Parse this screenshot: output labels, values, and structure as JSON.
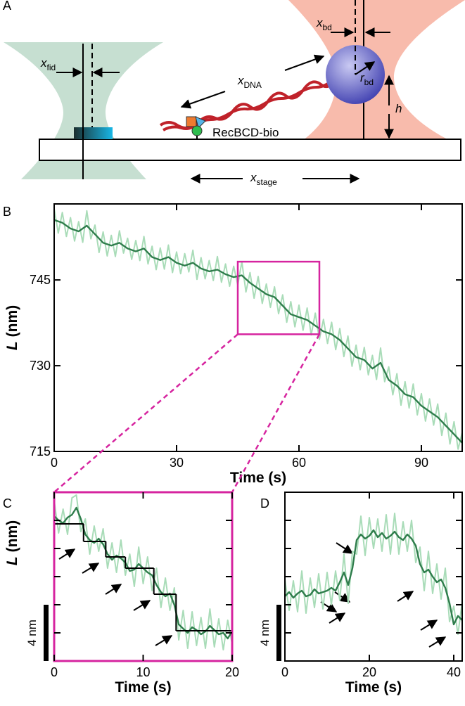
{
  "panel_a": {
    "label": "A",
    "x_fid": {
      "symbol": "x",
      "subscript": "fid"
    },
    "x_dna": {
      "symbol": "x",
      "subscript": "DNA"
    },
    "x_bd": {
      "symbol": "x",
      "subscript": "bd"
    },
    "r_bd": {
      "symbol": "r",
      "subscript": "bd"
    },
    "h": "h",
    "enzyme": "RecBCD-bio",
    "x_stage": {
      "symbol": "x",
      "subscript": "stage"
    }
  },
  "chart_data": [
    {
      "type": "line",
      "panel": "B",
      "x_label": "Time (s)",
      "y_label": {
        "symbol": "L",
        "unit": "(nm)"
      },
      "xlim": [
        0,
        100
      ],
      "ylim": [
        715,
        758.3
      ],
      "xticks": [
        0,
        30,
        60,
        90
      ],
      "yticks": [
        715,
        730,
        745
      ],
      "ytick_labels": true,
      "zoom_box": {
        "xlim": [
          45,
          65
        ],
        "ylim": [
          735.5,
          748.2
        ],
        "color": "#d6249f"
      },
      "series": [
        {
          "color": "#a9dcb8",
          "x": [
            0,
            1,
            2,
            3,
            4,
            5,
            6,
            7,
            8,
            9,
            10,
            11,
            12,
            13,
            14,
            15,
            16,
            17,
            18,
            19,
            20,
            21,
            22,
            23,
            24,
            25,
            26,
            27,
            28,
            29,
            30,
            31,
            32,
            33,
            34,
            35,
            36,
            37,
            38,
            39,
            40,
            41,
            42,
            43,
            44,
            45,
            46,
            47,
            48,
            49,
            50,
            51,
            52,
            53,
            54,
            55,
            56,
            57,
            58,
            59,
            60,
            61,
            62,
            63,
            64,
            65,
            66,
            67,
            68,
            69,
            70,
            71,
            72,
            73,
            74,
            75,
            76,
            77,
            78,
            79,
            80,
            81,
            82,
            83,
            84,
            85,
            86,
            87,
            88,
            89,
            90,
            91,
            92,
            93,
            94,
            95,
            96,
            97,
            98,
            99,
            100
          ],
          "values": [
            757.5,
            753.2,
            756.8,
            752.6,
            755.9,
            751.8,
            755.2,
            751.6,
            757.1,
            752.2,
            754.6,
            749.8,
            753.4,
            749.2,
            752.8,
            749.1,
            753.6,
            749.7,
            752.3,
            748.6,
            751.9,
            748.4,
            752.6,
            747.8,
            750.9,
            746.8,
            750.6,
            746.9,
            751.1,
            746.3,
            749.9,
            746.1,
            749.6,
            746.4,
            750.2,
            745.1,
            748.9,
            745.2,
            748.4,
            744.9,
            749.1,
            744.6,
            747.8,
            743.9,
            747.4,
            744.1,
            748.2,
            742.9,
            746.3,
            741.8,
            745.6,
            740.9,
            744.3,
            740.2,
            743.8,
            739.1,
            742.4,
            737.6,
            741.2,
            736.8,
            740.6,
            736.2,
            740.1,
            735.4,
            739.2,
            734.6,
            738.1,
            733.9,
            737.6,
            732.8,
            736.5,
            731.6,
            735.2,
            729.9,
            733.6,
            729.3,
            733.2,
            728.4,
            731.8,
            727.6,
            733.1,
            727.2,
            729.8,
            724.9,
            728.6,
            723.1,
            727.2,
            722.6,
            726.8,
            721.4,
            725.1,
            720.3,
            724.2,
            719.6,
            723.3,
            717.8,
            721.7,
            716.3,
            720.2,
            715.4,
            718.3
          ]
        },
        {
          "color": "#2f7d4c",
          "x": [
            0,
            2,
            4,
            6,
            8,
            10,
            12,
            14,
            16,
            18,
            20,
            22,
            24,
            26,
            28,
            30,
            32,
            34,
            36,
            38,
            40,
            42,
            44,
            46,
            48,
            50,
            52,
            54,
            56,
            58,
            60,
            62,
            64,
            66,
            68,
            70,
            72,
            74,
            76,
            78,
            80,
            82,
            84,
            86,
            88,
            90,
            92,
            94,
            96,
            98,
            100
          ],
          "values": [
            755.5,
            755,
            754,
            753.5,
            754.5,
            753,
            751.5,
            751,
            751.5,
            750.5,
            750,
            750.5,
            749,
            748.5,
            749,
            748,
            747.5,
            748,
            747,
            746.5,
            746.8,
            746,
            745.5,
            745.8,
            744.5,
            743.5,
            742.5,
            742,
            740.5,
            739,
            738.5,
            738,
            737,
            736,
            735.5,
            734.5,
            733,
            731.5,
            731,
            729.5,
            730.5,
            727.5,
            726.5,
            725,
            724.5,
            723,
            722,
            721,
            719.5,
            718,
            716.5
          ]
        }
      ]
    },
    {
      "type": "line",
      "panel": "C",
      "x_label": "Time (s)",
      "y_label": {
        "symbol": "L",
        "unit": "(nm)"
      },
      "xlim": [
        0,
        20
      ],
      "ylim": [
        0,
        12
      ],
      "xticks": [
        0,
        10,
        20
      ],
      "yticks": [
        2,
        4,
        6,
        8,
        10
      ],
      "ytick_labels": false,
      "frame_color": "#d6249f",
      "scale_bar": {
        "value": 4,
        "label": "4 nm"
      },
      "step_fit": {
        "color": "#000000",
        "edges": [
          0,
          3.3,
          5.8,
          8,
          11.2,
          13.7,
          20
        ],
        "values": [
          9.75,
          8.5,
          7.4,
          6.6,
          4.75,
          2.15
        ]
      },
      "series": [
        {
          "color": "#a9dcb8",
          "x": [
            0,
            0.5,
            1,
            1.5,
            2,
            2.5,
            3,
            3.5,
            4,
            4.5,
            5,
            5.5,
            6,
            6.5,
            7,
            7.5,
            8,
            8.5,
            9,
            9.5,
            10,
            10.5,
            11,
            11.5,
            12,
            12.5,
            13,
            13.5,
            14,
            14.5,
            15,
            15.5,
            16,
            16.5,
            17,
            17.5,
            18,
            18.5,
            19,
            19.5,
            20
          ],
          "values": [
            11.4,
            9.1,
            10.8,
            9.0,
            11.6,
            11.8,
            9.2,
            10.1,
            7.6,
            9.6,
            7.8,
            9.4,
            6.6,
            8.4,
            6.3,
            8.6,
            6.1,
            7.6,
            5.3,
            8.1,
            5.5,
            7.4,
            5.0,
            6.6,
            3.8,
            5.9,
            3.6,
            5.2,
            1.5,
            3.6,
            0.9,
            3.5,
            1.1,
            3.1,
            0.9,
            3.7,
            1.0,
            3.0,
            0.8,
            2.9,
            1.2
          ]
        },
        {
          "color": "#2f7d4c",
          "x": [
            0,
            0.5,
            1,
            1.5,
            2,
            2.5,
            3,
            3.5,
            4,
            4.5,
            5,
            5.5,
            6,
            6.5,
            7,
            7.5,
            8,
            8.5,
            9,
            9.5,
            10,
            10.5,
            11,
            11.5,
            12,
            12.5,
            13,
            13.5,
            14,
            14.5,
            15,
            15.5,
            16,
            16.5,
            17,
            17.5,
            18,
            18.5,
            19,
            19.5,
            20
          ],
          "values": [
            10.3,
            10.0,
            9.8,
            10.2,
            10.4,
            10.9,
            10.1,
            9.0,
            8.6,
            8.4,
            8.7,
            8.3,
            7.6,
            7.2,
            7.5,
            7.3,
            7.0,
            6.4,
            6.5,
            6.9,
            6.6,
            6.3,
            6.1,
            5.4,
            4.9,
            4.6,
            4.8,
            4.0,
            2.6,
            2.3,
            2.0,
            2.4,
            2.2,
            1.9,
            2.1,
            2.5,
            2.2,
            1.9,
            2.0,
            1.6,
            2.1
          ]
        }
      ]
    },
    {
      "type": "line",
      "panel": "D",
      "x_label": "Time (s)",
      "xlim": [
        0,
        42
      ],
      "ylim": [
        0,
        12
      ],
      "xticks": [
        0,
        20,
        40
      ],
      "yticks": [
        2,
        4,
        6,
        8,
        10
      ],
      "ytick_labels": false,
      "scale_bar": {
        "value": 4,
        "label": "4 nm"
      },
      "series": [
        {
          "color": "#a9dcb8",
          "x": [
            0,
            1,
            2,
            3,
            4,
            5,
            6,
            7,
            8,
            9,
            10,
            11,
            12,
            13,
            14,
            15,
            16,
            17,
            18,
            19,
            20,
            21,
            22,
            23,
            24,
            25,
            26,
            27,
            28,
            29,
            30,
            31,
            32,
            33,
            34,
            35,
            36,
            37,
            38,
            39,
            40,
            41,
            42
          ],
          "values": [
            5.8,
            3.6,
            5.7,
            3.5,
            6.4,
            3.4,
            5.9,
            3.8,
            6.2,
            3.7,
            6.3,
            4.0,
            6.4,
            4.3,
            7.6,
            4.1,
            7.8,
            7.6,
            10.3,
            7.5,
            10.2,
            8.0,
            10.1,
            7.8,
            10.4,
            7.6,
            10.5,
            7.6,
            9.9,
            7.8,
            10.0,
            7.0,
            8.1,
            5.0,
            7.8,
            4.8,
            6.9,
            4.4,
            6.6,
            2.8,
            3.9,
            1.9,
            4.2
          ]
        },
        {
          "color": "#2f7d4c",
          "x": [
            0,
            1,
            2,
            3,
            4,
            5,
            6,
            7,
            8,
            9,
            10,
            11,
            12,
            13,
            14,
            15,
            16,
            17,
            18,
            19,
            20,
            21,
            22,
            23,
            24,
            25,
            26,
            27,
            28,
            29,
            30,
            31,
            32,
            33,
            34,
            35,
            36,
            37,
            38,
            39,
            40,
            41,
            42
          ],
          "values": [
            4.6,
            4.9,
            4.5,
            4.8,
            5.0,
            4.6,
            4.7,
            5.1,
            4.8,
            4.9,
            5.0,
            5.2,
            5.0,
            5.6,
            6.3,
            5.4,
            6.6,
            8.6,
            9.0,
            8.7,
            8.9,
            9.3,
            8.8,
            9.1,
            8.7,
            8.9,
            9.2,
            8.8,
            8.6,
            9.0,
            8.7,
            8.2,
            6.9,
            6.3,
            6.5,
            6.0,
            5.6,
            5.8,
            5.2,
            4.1,
            2.6,
            3.2,
            2.9
          ]
        }
      ]
    }
  ]
}
